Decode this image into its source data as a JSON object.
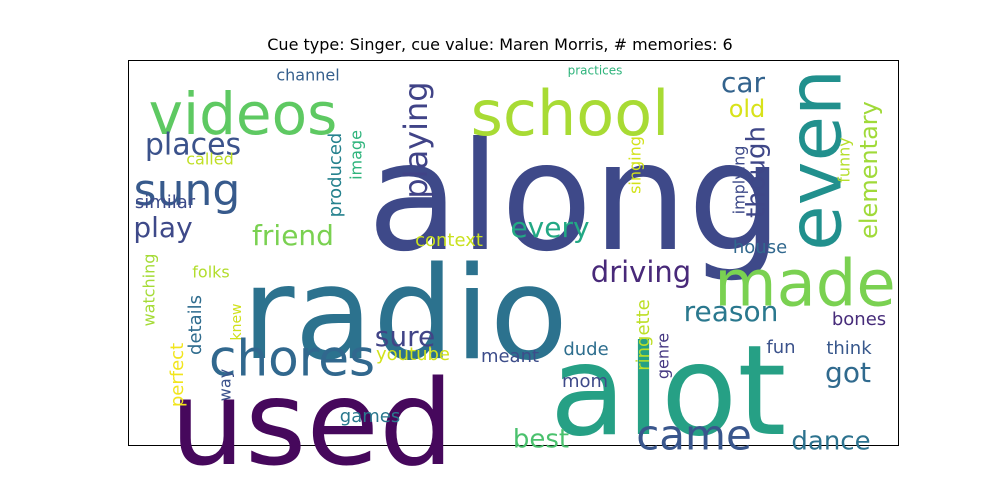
{
  "chart_data": {
    "type": "wordcloud",
    "title": "Cue type: Singer, cue value: Maren Morris, # memories: 6",
    "words": [
      {
        "text": "along",
        "color": "#3e4989"
      },
      {
        "text": "radio",
        "color": "#2c728e"
      },
      {
        "text": "alot",
        "color": "#26a085"
      },
      {
        "text": "used",
        "color": "#46085c"
      },
      {
        "text": "school",
        "color": "#a8db34"
      },
      {
        "text": "videos",
        "color": "#5ec962"
      },
      {
        "text": "even",
        "color": "#21908d"
      },
      {
        "text": "made",
        "color": "#7ad151"
      },
      {
        "text": "chores",
        "color": "#31688e"
      },
      {
        "text": "sung",
        "color": "#375a8c"
      },
      {
        "text": "places",
        "color": "#3b528b"
      },
      {
        "text": "came",
        "color": "#39568c"
      },
      {
        "text": "playing",
        "color": "#404387"
      },
      {
        "text": "car",
        "color": "#33638d"
      },
      {
        "text": "though",
        "color": "#3f4788"
      },
      {
        "text": "driving",
        "color": "#482979"
      },
      {
        "text": "friend",
        "color": "#7ad151"
      },
      {
        "text": "every",
        "color": "#22a884"
      },
      {
        "text": "play",
        "color": "#3e4989"
      },
      {
        "text": "elementary",
        "color": "#a0da39"
      },
      {
        "text": "old",
        "color": "#d8e219"
      },
      {
        "text": "reason",
        "color": "#2a788e"
      },
      {
        "text": "sure",
        "color": "#414487"
      },
      {
        "text": "got",
        "color": "#306a8e"
      },
      {
        "text": "best",
        "color": "#4ac16d"
      },
      {
        "text": "dance",
        "color": "#2c728e"
      },
      {
        "text": "channel",
        "color": "#355f8d"
      },
      {
        "text": "practices",
        "color": "#2fb47c"
      },
      {
        "text": "called",
        "color": "#c0df25"
      },
      {
        "text": "image",
        "color": "#2fb47c"
      },
      {
        "text": "produced",
        "color": "#26828e"
      },
      {
        "text": "singing",
        "color": "#d2e21b"
      },
      {
        "text": "implying",
        "color": "#3e4a89"
      },
      {
        "text": "funny",
        "color": "#b5de2b"
      },
      {
        "text": "similar",
        "color": "#3e4c8a"
      },
      {
        "text": "context",
        "color": "#cae11f"
      },
      {
        "text": "house",
        "color": "#31688e"
      },
      {
        "text": "watching",
        "color": "#a5db36"
      },
      {
        "text": "folks",
        "color": "#b2dd2d"
      },
      {
        "text": "knew",
        "color": "#d0e11c"
      },
      {
        "text": "details",
        "color": "#2f6c8e"
      },
      {
        "text": "perfect",
        "color": "#f1e51d"
      },
      {
        "text": "youtube",
        "color": "#d2e21b"
      },
      {
        "text": "meant",
        "color": "#3d4d8a"
      },
      {
        "text": "dude",
        "color": "#2e6e8e"
      },
      {
        "text": "genre",
        "color": "#453882"
      },
      {
        "text": "ringette",
        "color": "#bddf26"
      },
      {
        "text": "bones",
        "color": "#472c7a"
      },
      {
        "text": "fun",
        "color": "#3b528b"
      },
      {
        "text": "think",
        "color": "#38588c"
      },
      {
        "text": "mom",
        "color": "#3e4a89"
      },
      {
        "text": "way",
        "color": "#3b528b"
      },
      {
        "text": "games",
        "color": "#2a788e"
      }
    ]
  }
}
